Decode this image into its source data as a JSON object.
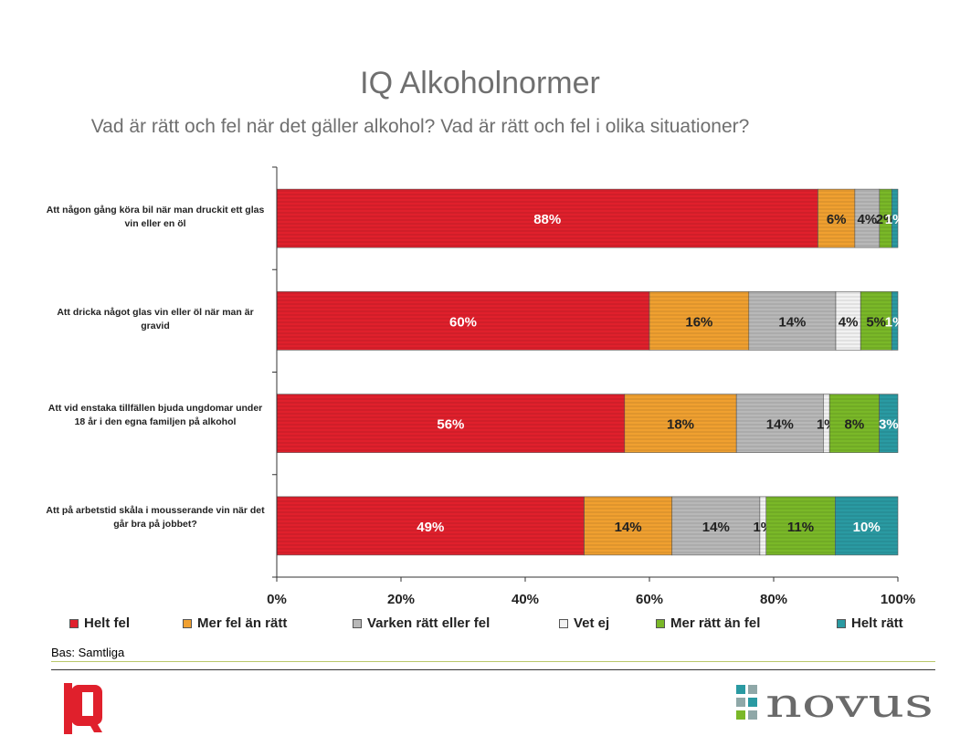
{
  "header": {
    "title": "IQ Alkoholnormer",
    "subtitle": "Vad är rätt och fel när det gäller alkohol? Vad är rätt och fel i olika situationer?"
  },
  "footer": {
    "base_label": "Bas: Samtliga",
    "iq_logo_text": "IQ",
    "novus_logo_text": "novus"
  },
  "chart_data": {
    "type": "bar",
    "orientation": "horizontal",
    "stacked": true,
    "percent_stacked": true,
    "categories": [
      "Att någon gång köra bil när man druckit ett glas vin eller en öl",
      "Att dricka något glas vin eller öl när man är gravid",
      "Att vid enstaka tillfällen bjuda ungdomar under 18 år i den egna familjen på alkohol",
      "Att på arbetstid skåla i mousserande vin när det går bra på jobbet?"
    ],
    "series": [
      {
        "name": "Helt fel",
        "color": "#e0202c",
        "values": [
          88,
          60,
          56,
          49
        ],
        "labels": [
          "88%",
          "60%",
          "56%",
          "49%"
        ],
        "label_color": "#ffffff"
      },
      {
        "name": "Mer fel än rätt",
        "color": "#f0a030",
        "values": [
          6,
          16,
          18,
          14
        ],
        "labels": [
          "6%",
          "16%",
          "18%",
          "14%"
        ],
        "label_color": "#222222"
      },
      {
        "name": "Varken rätt eller fel",
        "color": "#b8b8b8",
        "values": [
          4,
          14,
          14,
          14
        ],
        "labels": [
          "4%",
          "14%",
          "14%",
          "14%"
        ],
        "label_color": "#222222"
      },
      {
        "name": "Vet ej",
        "color": "#f2f2f2",
        "values": [
          0,
          4,
          1,
          1
        ],
        "labels": [
          "",
          "4%",
          "1%",
          "1%"
        ],
        "label_color": "#222222"
      },
      {
        "name": "Mer rätt än fel",
        "color": "#7ab828",
        "values": [
          2,
          5,
          8,
          11
        ],
        "labels": [
          "2%",
          "5%",
          "8%",
          "11%"
        ],
        "label_color": "#222222"
      },
      {
        "name": "Helt rätt",
        "color": "#2a9aa2",
        "values": [
          1,
          1,
          3,
          10
        ],
        "labels": [
          "1%",
          "1%",
          "3%",
          "10%"
        ],
        "label_color": "#ffffff"
      }
    ],
    "x_ticks": [
      "0%",
      "20%",
      "40%",
      "60%",
      "80%",
      "100%"
    ],
    "xlim": [
      0,
      100
    ],
    "xlabel": "",
    "ylabel": "",
    "grid": false,
    "legend_position": "bottom"
  }
}
